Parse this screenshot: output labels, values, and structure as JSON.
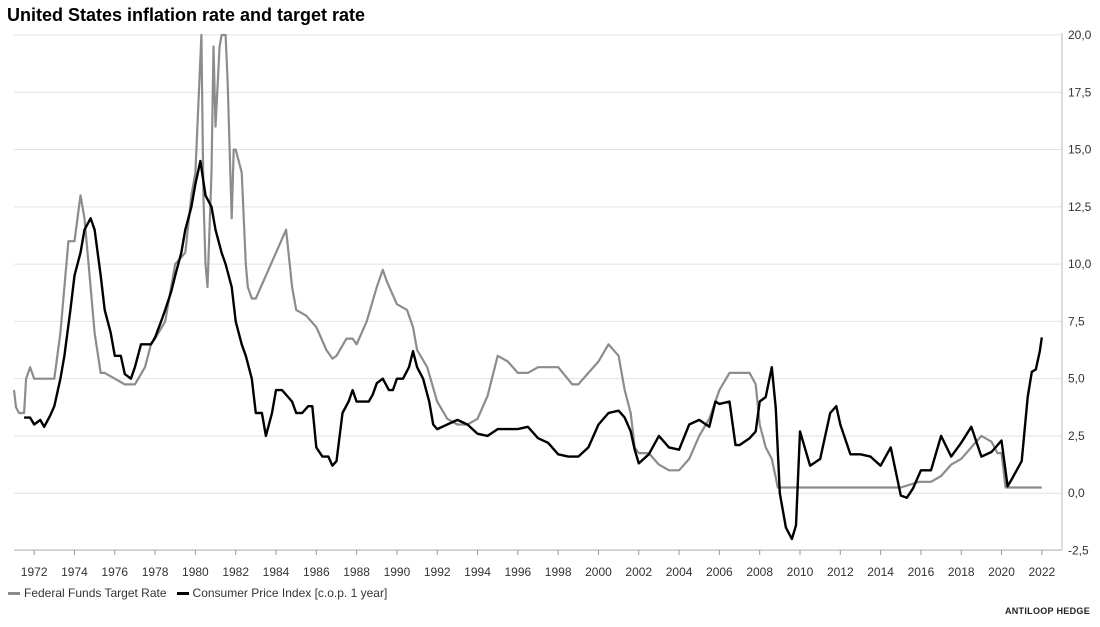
{
  "chart_data": {
    "type": "line",
    "title": "United States inflation rate and target rate",
    "xlabel": "",
    "ylabel": "",
    "xlim": [
      1971.0,
      2023.0
    ],
    "ylim": [
      -2.5,
      20.0
    ],
    "x_ticks": [
      "1972",
      "1974",
      "1976",
      "1978",
      "1980",
      "1982",
      "1984",
      "1986",
      "1988",
      "1990",
      "1992",
      "1994",
      "1996",
      "1998",
      "2000",
      "2002",
      "2004",
      "2006",
      "2008",
      "2010",
      "2012",
      "2014",
      "2016",
      "2018",
      "2020",
      "2022"
    ],
    "y_ticks": [
      "-2,5",
      "0,0",
      "2,5",
      "5,0",
      "7,5",
      "10,0",
      "12,5",
      "15,0",
      "17,5",
      "20,0"
    ],
    "grid": "horizontal",
    "legend_position": "bottom-left",
    "colors": {
      "Federal Funds Target Rate": "#8c8c8c",
      "Consumer Price Index [c.o.p. 1 year]": "#000000"
    },
    "series": [
      {
        "name": "Federal Funds Target Rate",
        "x": [
          1971.0,
          1971.1,
          1971.25,
          1971.5,
          1971.6,
          1971.8,
          1972.0,
          1972.5,
          1973.0,
          1973.3,
          1973.5,
          1973.7,
          1974.0,
          1974.3,
          1974.5,
          1974.8,
          1975.0,
          1975.3,
          1975.5,
          1976.0,
          1976.5,
          1977.0,
          1977.5,
          1977.8,
          1978.0,
          1978.5,
          1978.8,
          1979.0,
          1979.5,
          1979.8,
          1980.0,
          1980.15,
          1980.3,
          1980.4,
          1980.5,
          1980.6,
          1980.8,
          1980.9,
          1981.0,
          1981.2,
          1981.3,
          1981.5,
          1981.6,
          1981.8,
          1981.9,
          1982.0,
          1982.3,
          1982.5,
          1982.6,
          1982.8,
          1982.9,
          1983.0,
          1983.5,
          1984.0,
          1984.5,
          1984.8,
          1985.0,
          1985.5,
          1986.0,
          1986.5,
          1986.8,
          1987.0,
          1987.5,
          1987.8,
          1988.0,
          1988.5,
          1989.0,
          1989.3,
          1989.5,
          1990.0,
          1990.5,
          1990.8,
          1991.0,
          1991.5,
          1992.0,
          1992.5,
          1993.0,
          1993.5,
          1994.0,
          1994.5,
          1995.0,
          1995.5,
          1996.0,
          1996.5,
          1997.0,
          1997.5,
          1998.0,
          1998.7,
          1999.0,
          1999.5,
          2000.0,
          2000.5,
          2001.0,
          2001.3,
          2001.6,
          2001.8,
          2002.0,
          2002.5,
          2003.0,
          2003.5,
          2004.0,
          2004.5,
          2005.0,
          2005.5,
          2006.0,
          2006.5,
          2007.0,
          2007.5,
          2007.8,
          2008.0,
          2008.3,
          2008.6,
          2008.9,
          2009.0,
          2010.0,
          2011.0,
          2012.0,
          2013.0,
          2014.0,
          2015.0,
          2015.9,
          2016.5,
          2017.0,
          2017.5,
          2018.0,
          2018.5,
          2019.0,
          2019.5,
          2019.8,
          2020.0,
          2020.2,
          2021.0,
          2022.0
        ],
        "values": [
          4.5,
          3.75,
          3.5,
          3.5,
          5.0,
          5.5,
          5.0,
          5.0,
          5.0,
          7.0,
          9.0,
          11.0,
          11.0,
          13.0,
          12.0,
          9.0,
          7.0,
          5.25,
          5.25,
          5.0,
          4.75,
          4.75,
          5.5,
          6.5,
          6.75,
          7.5,
          9.0,
          10.0,
          10.5,
          13.0,
          14.0,
          17.0,
          20.0,
          13.0,
          10.0,
          9.0,
          14.0,
          19.5,
          16.0,
          19.5,
          20.0,
          20.0,
          18.0,
          12.0,
          15.0,
          15.0,
          14.0,
          10.0,
          9.0,
          8.5,
          8.5,
          8.5,
          9.5,
          10.5,
          11.5,
          9.0,
          8.0,
          7.75,
          7.25,
          6.25,
          5.875,
          6.0,
          6.75,
          6.75,
          6.5,
          7.5,
          9.0,
          9.75,
          9.25,
          8.25,
          8.0,
          7.25,
          6.25,
          5.5,
          4.0,
          3.25,
          3.0,
          3.0,
          3.25,
          4.25,
          6.0,
          5.75,
          5.25,
          5.25,
          5.5,
          5.5,
          5.5,
          4.75,
          4.75,
          5.25,
          5.75,
          6.5,
          6.0,
          4.5,
          3.5,
          2.0,
          1.75,
          1.75,
          1.25,
          1.0,
          1.0,
          1.5,
          2.5,
          3.25,
          4.5,
          5.25,
          5.25,
          5.25,
          4.75,
          3.0,
          2.0,
          1.5,
          0.25,
          0.25,
          0.25,
          0.25,
          0.25,
          0.25,
          0.25,
          0.25,
          0.5,
          0.5,
          0.75,
          1.25,
          1.5,
          2.0,
          2.5,
          2.25,
          1.75,
          1.75,
          0.25,
          0.25,
          0.25
        ]
      },
      {
        "name": "Consumer Price Index [c.o.p. 1 year]",
        "x": [
          1971.5,
          1971.8,
          1972.0,
          1972.3,
          1972.5,
          1972.8,
          1973.0,
          1973.3,
          1973.5,
          1973.8,
          1974.0,
          1974.3,
          1974.5,
          1974.8,
          1975.0,
          1975.3,
          1975.5,
          1975.8,
          1976.0,
          1976.3,
          1976.5,
          1976.8,
          1977.0,
          1977.3,
          1977.5,
          1977.8,
          1978.0,
          1978.3,
          1978.5,
          1978.8,
          1979.0,
          1979.3,
          1979.5,
          1979.8,
          1980.0,
          1980.25,
          1980.5,
          1980.8,
          1981.0,
          1981.3,
          1981.5,
          1981.8,
          1982.0,
          1982.3,
          1982.5,
          1982.8,
          1983.0,
          1983.3,
          1983.5,
          1983.8,
          1984.0,
          1984.3,
          1984.6,
          1984.8,
          1985.0,
          1985.3,
          1985.6,
          1985.8,
          1986.0,
          1986.3,
          1986.6,
          1986.8,
          1987.0,
          1987.3,
          1987.6,
          1987.8,
          1988.0,
          1988.3,
          1988.6,
          1988.8,
          1989.0,
          1989.3,
          1989.6,
          1989.8,
          1990.0,
          1990.3,
          1990.6,
          1990.8,
          1991.0,
          1991.3,
          1991.6,
          1991.8,
          1992.0,
          1992.5,
          1993.0,
          1993.5,
          1994.0,
          1994.5,
          1995.0,
          1995.5,
          1996.0,
          1996.5,
          1997.0,
          1997.5,
          1998.0,
          1998.5,
          1999.0,
          1999.5,
          2000.0,
          2000.5,
          2001.0,
          2001.3,
          2001.6,
          2001.8,
          2002.0,
          2002.5,
          2003.0,
          2003.5,
          2004.0,
          2004.5,
          2005.0,
          2005.5,
          2005.8,
          2006.0,
          2006.5,
          2006.8,
          2007.0,
          2007.5,
          2007.8,
          2008.0,
          2008.3,
          2008.6,
          2008.8,
          2009.0,
          2009.3,
          2009.6,
          2009.8,
          2010.0,
          2010.5,
          2011.0,
          2011.5,
          2011.8,
          2012.0,
          2012.5,
          2013.0,
          2013.5,
          2014.0,
          2014.5,
          2015.0,
          2015.3,
          2015.6,
          2016.0,
          2016.5,
          2017.0,
          2017.5,
          2018.0,
          2018.5,
          2019.0,
          2019.5,
          2020.0,
          2020.3,
          2020.5,
          2021.0,
          2021.3,
          2021.5,
          2021.7,
          2021.9,
          2022.0
        ],
        "values": [
          3.3,
          3.3,
          3.0,
          3.2,
          2.9,
          3.4,
          3.8,
          5.0,
          6.0,
          8.0,
          9.5,
          10.5,
          11.5,
          12.0,
          11.5,
          9.5,
          8.0,
          7.0,
          6.0,
          6.0,
          5.2,
          5.0,
          5.5,
          6.5,
          6.5,
          6.5,
          6.8,
          7.5,
          8.0,
          8.8,
          9.5,
          10.5,
          11.5,
          12.5,
          13.5,
          14.5,
          13.0,
          12.5,
          11.5,
          10.5,
          10.0,
          9.0,
          7.5,
          6.5,
          6.0,
          5.0,
          3.5,
          3.5,
          2.5,
          3.5,
          4.5,
          4.5,
          4.2,
          4.0,
          3.5,
          3.5,
          3.8,
          3.8,
          2.0,
          1.6,
          1.6,
          1.2,
          1.4,
          3.5,
          4.0,
          4.5,
          4.0,
          4.0,
          4.0,
          4.3,
          4.8,
          5.0,
          4.5,
          4.5,
          5.0,
          5.0,
          5.5,
          6.2,
          5.5,
          5.0,
          4.0,
          3.0,
          2.8,
          3.0,
          3.2,
          3.0,
          2.6,
          2.5,
          2.8,
          2.8,
          2.8,
          2.9,
          2.4,
          2.2,
          1.7,
          1.6,
          1.6,
          2.0,
          3.0,
          3.5,
          3.6,
          3.3,
          2.7,
          1.9,
          1.3,
          1.7,
          2.5,
          2.0,
          1.9,
          3.0,
          3.2,
          2.9,
          4.0,
          3.9,
          4.0,
          2.1,
          2.1,
          2.4,
          2.7,
          4.0,
          4.2,
          5.5,
          3.7,
          0.0,
          -1.5,
          -2.0,
          -1.4,
          2.7,
          1.2,
          1.5,
          3.5,
          3.8,
          3.0,
          1.7,
          1.7,
          1.6,
          1.2,
          2.0,
          -0.1,
          -0.2,
          0.2,
          1.0,
          1.0,
          2.5,
          1.6,
          2.2,
          2.9,
          1.6,
          1.8,
          2.3,
          0.3,
          0.6,
          1.4,
          4.2,
          5.3,
          5.4,
          6.2,
          6.8
        ]
      }
    ]
  },
  "legend": {
    "items": [
      {
        "label": "Federal Funds Target Rate",
        "color": "#8c8c8c"
      },
      {
        "label": "Consumer Price Index [c.o.p. 1 year]",
        "color": "#000000"
      }
    ]
  },
  "source_note": "ANTILOOP HEDGE"
}
